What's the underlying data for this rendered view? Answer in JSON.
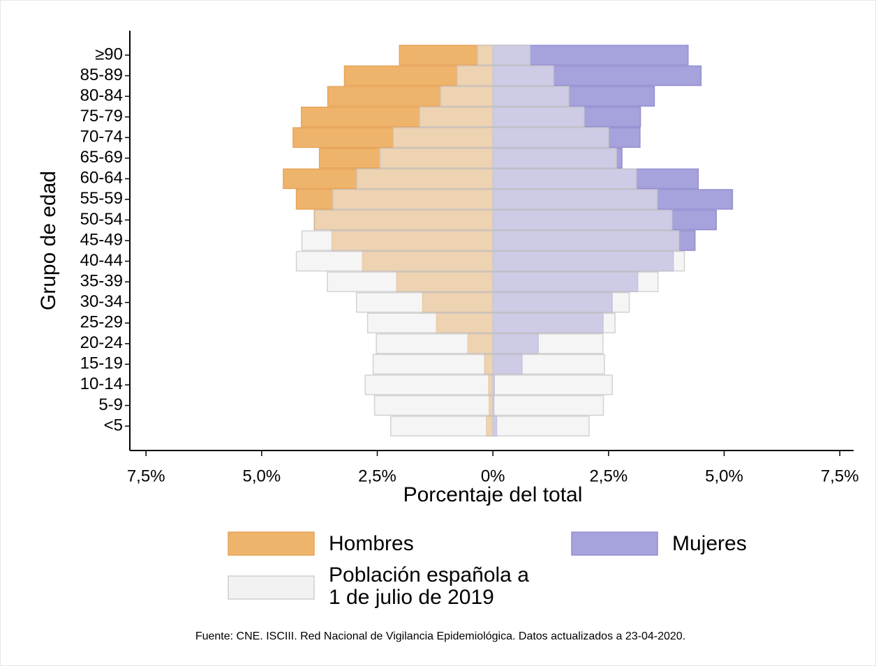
{
  "chart_data": {
    "type": "pyramid",
    "ylabel": "Grupo de edad",
    "xlabel": "Porcentaje del total",
    "source": "Fuente: CNE. ISCIII. Red Nacional de Vigilancia Epidemiológica. Datos actualizados a 23-04-2020.",
    "categories": [
      "≥90",
      "85-89",
      "80-84",
      "75-79",
      "70-74",
      "65-69",
      "60-64",
      "55-59",
      "50-54",
      "45-49",
      "40-44",
      "35-39",
      "30-34",
      "25-29",
      "20-24",
      "15-19",
      "10-14",
      "5-9",
      "<5"
    ],
    "series": [
      {
        "name": "Hombres",
        "color": "#efb46c",
        "values": [
          -2.02,
          -3.21,
          -3.57,
          -4.14,
          -4.32,
          -3.75,
          -4.53,
          -4.25,
          -3.86,
          -3.48,
          -2.82,
          -2.08,
          -1.52,
          -1.22,
          -0.54,
          -0.18,
          -0.09,
          -0.08,
          -0.14
        ]
      },
      {
        "name": "Mujeres",
        "color": "#a6a2dc",
        "values": [
          4.22,
          4.5,
          3.49,
          3.19,
          3.18,
          2.79,
          4.44,
          5.18,
          4.83,
          4.37,
          3.9,
          3.13,
          2.58,
          2.38,
          0.98,
          0.63,
          0.03,
          0.02,
          0.08
        ]
      }
    ],
    "reference": {
      "name": "Población española a 1 de julio de 2019",
      "color": "#ececec",
      "hombres": [
        -0.33,
        -0.77,
        -1.13,
        -1.58,
        -2.15,
        -2.44,
        -2.94,
        -3.46,
        -3.85,
        -4.13,
        -4.25,
        -3.58,
        -2.95,
        -2.71,
        -2.52,
        -2.59,
        -2.76,
        -2.56,
        -2.21
      ],
      "mujeres": [
        0.8,
        1.31,
        1.64,
        1.97,
        2.5,
        2.67,
        3.1,
        3.55,
        3.87,
        4.02,
        4.14,
        3.57,
        2.95,
        2.64,
        2.38,
        2.41,
        2.58,
        2.39,
        2.08
      ]
    },
    "xlim": [
      -7.85,
      7.8
    ],
    "xticks": [
      {
        "value": -7.5,
        "label": "7,5%"
      },
      {
        "value": -5,
        "label": "5,0%"
      },
      {
        "value": -2.5,
        "label": "2,5%"
      },
      {
        "value": 0,
        "label": "0%"
      },
      {
        "value": 2.5,
        "label": "2,5%"
      },
      {
        "value": 5,
        "label": "5,0%"
      },
      {
        "value": 7.5,
        "label": "7,5%"
      }
    ]
  }
}
